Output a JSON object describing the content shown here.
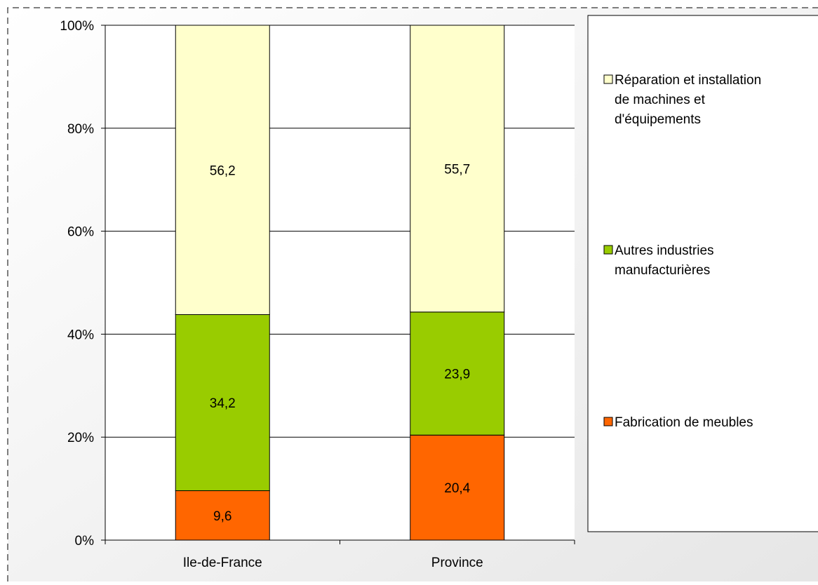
{
  "chart_data": {
    "type": "bar",
    "stacked": true,
    "percent_stacked": true,
    "categories": [
      "Ile-de-France",
      "Province"
    ],
    "series": [
      {
        "name": "Fabrication de meubles",
        "values": [
          9.6,
          20.4
        ],
        "labels": [
          "9,6",
          "20,4"
        ],
        "color": "#ff6600"
      },
      {
        "name": "Autres industries manufacturières",
        "values": [
          34.2,
          23.9
        ],
        "labels": [
          "34,2",
          "23,9"
        ],
        "color": "#99cc00"
      },
      {
        "name": "Réparation et installation de machines et d'équipements",
        "values": [
          56.2,
          55.7
        ],
        "labels": [
          "56,2",
          "55,7"
        ],
        "color": "#ffffcc"
      }
    ],
    "legend": {
      "placement": "right",
      "order": [
        2,
        1,
        0
      ],
      "entries": [
        [
          "Réparation et installation",
          "de machines et",
          "d'équipements"
        ],
        [
          "Autres industries",
          "manufacturières"
        ],
        [
          "Fabrication de meubles"
        ]
      ]
    },
    "y_ticks": [
      "0%",
      "20%",
      "40%",
      "60%",
      "80%",
      "100%"
    ],
    "ylim": [
      0,
      100
    ],
    "grid": true,
    "title": "",
    "xlabel": "",
    "ylabel": ""
  }
}
